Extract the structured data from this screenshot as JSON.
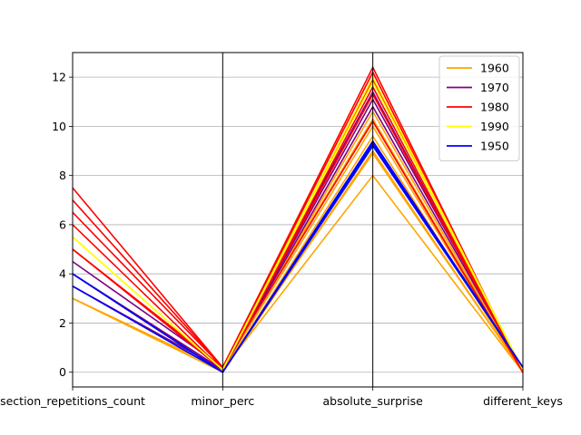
{
  "chart_data": {
    "type": "line",
    "title": "",
    "xlabel": "",
    "ylabel": "",
    "categories": [
      "section_repetitions_count",
      "minor_perc",
      "absolute_surprise",
      "different_keys"
    ],
    "ylim": [
      -0.6,
      13.0
    ],
    "y_ticks": [
      0,
      2,
      4,
      6,
      8,
      10,
      12
    ],
    "grid": "horizontal",
    "legend_position": "top-right",
    "legend": [
      {
        "label": "1960",
        "color": "#ffa500"
      },
      {
        "label": "1970",
        "color": "#800080"
      },
      {
        "label": "1980",
        "color": "#ff0000"
      },
      {
        "label": "1990",
        "color": "#ffff00"
      },
      {
        "label": "1950",
        "color": "#0000ff"
      }
    ],
    "series": [
      {
        "group": "1960",
        "color": "#ffa500",
        "values": [
          3.0,
          0.1,
          8.0,
          0.0
        ]
      },
      {
        "group": "1960",
        "color": "#ffa500",
        "values": [
          3.0,
          0.1,
          8.9,
          0.0
        ]
      },
      {
        "group": "1960",
        "color": "#ffa500",
        "values": [
          3.0,
          0.0,
          9.0,
          0.0
        ]
      },
      {
        "group": "1960",
        "color": "#ffa500",
        "values": [
          4.0,
          0.0,
          9.6,
          0.0
        ]
      },
      {
        "group": "1960",
        "color": "#ffa500",
        "values": [
          4.0,
          0.1,
          10.0,
          0.0
        ]
      },
      {
        "group": "1960",
        "color": "#ffa500",
        "values": [
          5.0,
          0.2,
          10.3,
          0.0
        ]
      },
      {
        "group": "1960",
        "color": "#ffa500",
        "values": [
          3.0,
          0.1,
          10.6,
          0.0
        ]
      },
      {
        "group": "1970",
        "color": "#800080",
        "values": [
          3.5,
          0.1,
          10.8,
          0.1
        ]
      },
      {
        "group": "1970",
        "color": "#800080",
        "values": [
          4.0,
          0.1,
          11.1,
          0.1
        ]
      },
      {
        "group": "1970",
        "color": "#800080",
        "values": [
          4.5,
          0.2,
          11.4,
          0.0
        ]
      },
      {
        "group": "1980",
        "color": "#ff0000",
        "values": [
          7.5,
          0.2,
          12.4,
          0.0
        ]
      },
      {
        "group": "1980",
        "color": "#ff0000",
        "values": [
          7.0,
          0.2,
          12.2,
          0.0
        ]
      },
      {
        "group": "1980",
        "color": "#ff0000",
        "values": [
          6.5,
          0.2,
          11.9,
          0.0
        ]
      },
      {
        "group": "1980",
        "color": "#ff0000",
        "values": [
          6.0,
          0.1,
          11.6,
          0.0
        ]
      },
      {
        "group": "1980",
        "color": "#ff0000",
        "values": [
          5.0,
          0.1,
          11.3,
          0.0
        ]
      },
      {
        "group": "1980",
        "color": "#ff0000",
        "values": [
          5.0,
          0.2,
          10.2,
          0.0
        ]
      },
      {
        "group": "1990",
        "color": "#ffff00",
        "values": [
          5.5,
          0.1,
          12.0,
          0.1
        ]
      },
      {
        "group": "1990",
        "color": "#ffff00",
        "values": [
          5.5,
          0.1,
          11.8,
          0.1
        ]
      },
      {
        "group": "1950",
        "color": "#0000ff",
        "values": [
          4.0,
          0.0,
          9.2,
          0.2
        ]
      },
      {
        "group": "1950",
        "color": "#0000ff",
        "values": [
          4.0,
          0.0,
          9.4,
          0.2
        ]
      },
      {
        "group": "1950",
        "color": "#0000ff",
        "values": [
          3.5,
          0.0,
          9.3,
          0.2
        ]
      }
    ]
  }
}
